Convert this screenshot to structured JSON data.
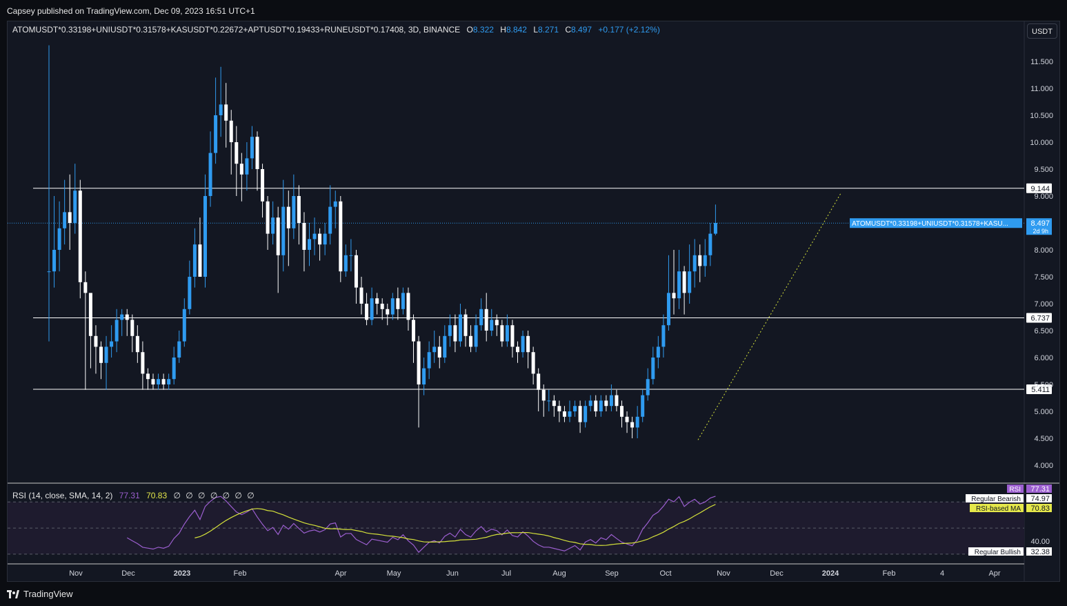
{
  "header": {
    "published": "Capsey published on TradingView.com, Dec 09, 2023 16:51 UTC+1"
  },
  "legend": {
    "symbol": "ATOMUSDT*0.33198+UNIUSDT*0.31578+KASUSDT*0.22672+APTUSDT*0.19433+RUNEUSDT*0.17408, 3D, BINANCE",
    "open_key": "O",
    "open": "8.322",
    "high_key": "H",
    "high": "8.842",
    "low_key": "L",
    "low": "8.271",
    "close_key": "C",
    "close": "8.497",
    "change": "+0.177 (+2.12%)"
  },
  "currency_button": "USDT",
  "rsi_legend": {
    "label": "RSI (14, close, SMA, 14, 2)",
    "rsi": "77.31",
    "ma": "70.83",
    "empty": "∅ ∅ ∅ ∅ ∅ ∅ ∅"
  },
  "footer": {
    "brand": "TradingView"
  },
  "colors": {
    "up": "#2f9bf0",
    "down": "#ffffff",
    "background": "#131722",
    "rsi": "#9c5fd0",
    "rsi_ma": "#d6e33a",
    "trendline": "#d6e33a"
  },
  "chart_data": {
    "type": "candlestick",
    "price_axis": {
      "ticks": [
        "11.500",
        "11.000",
        "10.500",
        "10.000",
        "9.500",
        "9.000",
        "8.000",
        "7.500",
        "7.000",
        "6.500",
        "6.000",
        "5.500",
        "5.000",
        "4.500",
        "4.000"
      ],
      "range": [
        3.7,
        12.0
      ]
    },
    "time_axis": {
      "ticks": [
        "Nov",
        "Dec",
        "2023",
        "Feb",
        "Apr",
        "May",
        "Jun",
        "Jul",
        "Aug",
        "Sep",
        "Oct",
        "Nov",
        "Dec",
        "2024",
        "Feb",
        "4",
        "Apr"
      ]
    },
    "horizontal_levels": [
      {
        "value": 9.144,
        "label": "9.144"
      },
      {
        "value": 6.737,
        "label": "6.737"
      },
      {
        "value": 5.411,
        "label": "5.411"
      }
    ],
    "current_price": {
      "value": 8.497,
      "label": "8.497",
      "countdown": "2d 9h",
      "symbol_tag": "ATOMUSDT*0.33198+UNIUSDT*0.31578+KASU..."
    },
    "trendline": {
      "from": [
        "Oct 20, 2023",
        4.47
      ],
      "to": [
        "Jan 08, 2024",
        9.05
      ],
      "style": "dotted"
    },
    "candles": [
      [
        7.6,
        7.6,
        11.8,
        6.3
      ],
      [
        7.6,
        8.0,
        9.0,
        7.3
      ],
      [
        8.0,
        8.4,
        8.9,
        7.6
      ],
      [
        8.4,
        8.7,
        9.3,
        8.1
      ],
      [
        8.7,
        8.5,
        9.4,
        8.0
      ],
      [
        8.5,
        9.1,
        9.6,
        8.3
      ],
      [
        9.1,
        7.4,
        9.3,
        7.1
      ],
      [
        7.4,
        7.2,
        7.6,
        5.4
      ],
      [
        7.2,
        6.4,
        7.0,
        5.8
      ],
      [
        6.4,
        6.2,
        6.6,
        5.7
      ],
      [
        6.2,
        5.9,
        6.3,
        5.6
      ],
      [
        5.9,
        6.2,
        6.4,
        5.4
      ],
      [
        6.2,
        6.3,
        6.6,
        6.0
      ],
      [
        6.3,
        6.7,
        6.9,
        6.1
      ],
      [
        6.7,
        6.8,
        6.9,
        6.4
      ],
      [
        6.8,
        6.7,
        6.9,
        6.4
      ],
      [
        6.7,
        6.4,
        6.8,
        6.1
      ],
      [
        6.4,
        6.1,
        6.6,
        5.9
      ],
      [
        6.1,
        5.7,
        6.3,
        5.4
      ],
      [
        5.7,
        5.6,
        5.8,
        5.4
      ],
      [
        5.6,
        5.5,
        5.7,
        5.4
      ],
      [
        5.5,
        5.6,
        5.7,
        5.4
      ],
      [
        5.6,
        5.5,
        5.7,
        5.4
      ],
      [
        5.5,
        5.6,
        5.7,
        5.4
      ],
      [
        5.6,
        6.0,
        6.2,
        5.5
      ],
      [
        6.0,
        6.3,
        6.5,
        5.9
      ],
      [
        6.3,
        6.9,
        7.1,
        6.2
      ],
      [
        6.9,
        7.5,
        7.8,
        6.8
      ],
      [
        7.5,
        8.1,
        8.4,
        7.3
      ],
      [
        8.1,
        7.5,
        8.6,
        7.5
      ],
      [
        7.5,
        9.0,
        9.4,
        7.3
      ],
      [
        9.0,
        9.8,
        10.2,
        8.8
      ],
      [
        9.8,
        10.5,
        11.2,
        9.6
      ],
      [
        10.5,
        10.7,
        11.4,
        10.1
      ],
      [
        10.7,
        10.4,
        11.1,
        9.9
      ],
      [
        10.4,
        10.0,
        10.6,
        9.4
      ],
      [
        10.0,
        9.6,
        10.3,
        9.0
      ],
      [
        9.6,
        9.4,
        9.8,
        8.9
      ],
      [
        9.4,
        9.7,
        10.0,
        9.1
      ],
      [
        9.7,
        10.1,
        10.3,
        9.5
      ],
      [
        10.1,
        9.5,
        10.2,
        9.1
      ],
      [
        9.5,
        8.9,
        9.6,
        8.6
      ],
      [
        8.9,
        8.3,
        9.0,
        8.0
      ],
      [
        8.3,
        8.6,
        8.9,
        8.1
      ],
      [
        8.6,
        7.9,
        8.8,
        7.2
      ],
      [
        7.9,
        8.8,
        9.3,
        7.6
      ],
      [
        8.8,
        8.4,
        9.1,
        7.7
      ],
      [
        8.4,
        9.0,
        9.4,
        8.2
      ],
      [
        9.0,
        8.5,
        9.2,
        8.1
      ],
      [
        8.5,
        8.0,
        8.7,
        7.6
      ],
      [
        8.0,
        8.2,
        8.5,
        7.7
      ],
      [
        8.2,
        8.3,
        8.6,
        7.9
      ],
      [
        8.3,
        8.1,
        8.4,
        7.8
      ],
      [
        8.1,
        8.3,
        8.5,
        7.9
      ],
      [
        8.3,
        8.8,
        9.2,
        8.1
      ],
      [
        8.8,
        8.9,
        9.1,
        8.4
      ],
      [
        8.9,
        7.6,
        9.0,
        7.4
      ],
      [
        7.6,
        7.9,
        8.1,
        7.5
      ],
      [
        7.9,
        7.9,
        8.2,
        7.6
      ],
      [
        7.9,
        7.3,
        8.0,
        7.0
      ],
      [
        7.3,
        7.0,
        7.5,
        6.8
      ],
      [
        7.0,
        6.7,
        7.2,
        6.6
      ],
      [
        6.7,
        7.1,
        7.3,
        6.6
      ],
      [
        7.1,
        7.0,
        7.2,
        6.8
      ],
      [
        7.0,
        6.9,
        7.1,
        6.7
      ],
      [
        6.9,
        6.8,
        7.0,
        6.6
      ],
      [
        6.8,
        7.1,
        7.2,
        6.7
      ],
      [
        7.1,
        6.9,
        7.3,
        6.7
      ],
      [
        6.9,
        7.2,
        7.3,
        6.8
      ],
      [
        7.2,
        6.7,
        7.3,
        6.5
      ],
      [
        6.7,
        6.3,
        6.8,
        5.9
      ],
      [
        6.3,
        5.5,
        6.4,
        4.7
      ],
      [
        5.5,
        5.8,
        6.0,
        5.3
      ],
      [
        5.8,
        6.1,
        6.3,
        5.6
      ],
      [
        6.1,
        6.2,
        6.5,
        5.9
      ],
      [
        6.2,
        6.0,
        6.4,
        5.8
      ],
      [
        6.0,
        6.4,
        6.6,
        5.9
      ],
      [
        6.4,
        6.6,
        6.8,
        6.2
      ],
      [
        6.6,
        6.3,
        6.8,
        6.1
      ],
      [
        6.3,
        6.8,
        7.0,
        6.2
      ],
      [
        6.8,
        6.4,
        6.9,
        6.2
      ],
      [
        6.4,
        6.2,
        6.6,
        6.1
      ],
      [
        6.2,
        6.6,
        6.8,
        6.1
      ],
      [
        6.6,
        6.9,
        7.1,
        6.5
      ],
      [
        6.9,
        6.5,
        7.2,
        6.3
      ],
      [
        6.5,
        6.7,
        6.9,
        6.4
      ],
      [
        6.7,
        6.6,
        6.8,
        6.4
      ],
      [
        6.6,
        6.3,
        6.7,
        6.2
      ],
      [
        6.3,
        6.6,
        6.8,
        6.2
      ],
      [
        6.6,
        6.2,
        6.7,
        6.0
      ],
      [
        6.2,
        6.1,
        6.3,
        5.9
      ],
      [
        6.1,
        6.4,
        6.5,
        6.0
      ],
      [
        6.4,
        6.1,
        6.5,
        5.8
      ],
      [
        6.1,
        5.7,
        6.2,
        5.5
      ],
      [
        5.7,
        5.4,
        5.8,
        5.0
      ],
      [
        5.4,
        5.2,
        5.5,
        4.9
      ],
      [
        5.2,
        5.2,
        5.4,
        5.0
      ],
      [
        5.2,
        5.1,
        5.3,
        4.9
      ],
      [
        5.1,
        5.0,
        5.2,
        4.8
      ],
      [
        5.0,
        4.9,
        5.1,
        4.8
      ],
      [
        4.9,
        5.0,
        5.2,
        4.8
      ],
      [
        5.0,
        5.1,
        5.2,
        4.9
      ],
      [
        5.1,
        4.8,
        5.2,
        4.6
      ],
      [
        4.8,
        5.1,
        5.2,
        4.7
      ],
      [
        5.1,
        5.2,
        5.3,
        5.0
      ],
      [
        5.2,
        5.0,
        5.3,
        4.9
      ],
      [
        5.0,
        5.2,
        5.3,
        4.9
      ],
      [
        5.2,
        5.1,
        5.3,
        5.0
      ],
      [
        5.1,
        5.3,
        5.5,
        5.0
      ],
      [
        5.3,
        5.1,
        5.4,
        5.0
      ],
      [
        5.1,
        4.9,
        5.2,
        4.7
      ],
      [
        4.9,
        4.8,
        5.0,
        4.6
      ],
      [
        4.8,
        4.7,
        4.9,
        4.5
      ],
      [
        4.7,
        4.9,
        5.1,
        4.5
      ],
      [
        4.9,
        5.3,
        5.4,
        4.8
      ],
      [
        5.3,
        5.6,
        5.8,
        5.2
      ],
      [
        5.6,
        6.0,
        6.2,
        5.5
      ],
      [
        6.0,
        6.2,
        6.4,
        5.8
      ],
      [
        6.2,
        6.6,
        6.8,
        6.0
      ],
      [
        6.6,
        7.2,
        7.9,
        6.5
      ],
      [
        7.2,
        7.1,
        8.0,
        6.8
      ],
      [
        7.1,
        7.6,
        8.0,
        6.9
      ],
      [
        7.6,
        7.2,
        7.7,
        6.8
      ],
      [
        7.2,
        7.6,
        8.1,
        7.0
      ],
      [
        7.6,
        7.9,
        8.2,
        7.3
      ],
      [
        7.9,
        7.7,
        8.1,
        7.4
      ],
      [
        7.7,
        7.9,
        8.2,
        7.5
      ],
      [
        7.9,
        8.3,
        8.5,
        7.7
      ],
      [
        8.3,
        8.5,
        8.842,
        8.271
      ]
    ]
  }
}
